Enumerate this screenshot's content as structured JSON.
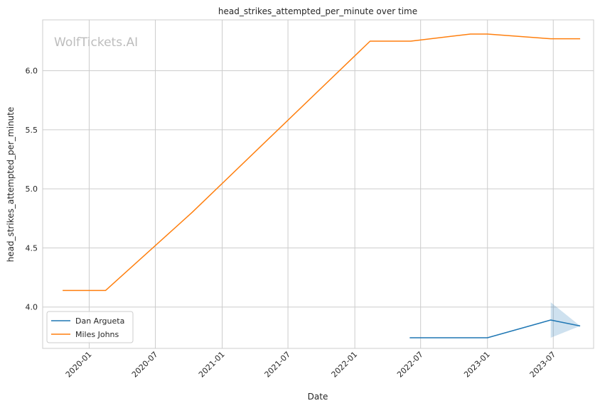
{
  "chart_data": {
    "type": "line",
    "title": "head_strikes_attempted_per_minute over time",
    "xlabel": "Date",
    "ylabel": "head_strikes_attempted_per_minute",
    "watermark": "WolfTickets.AI",
    "x_scale": "time",
    "xlim": [
      "2019-08-26",
      "2023-10-20"
    ],
    "ylim": [
      3.65,
      6.43
    ],
    "x_ticks": [
      {
        "date": "2020-01-01",
        "label": "2020-01"
      },
      {
        "date": "2020-07-01",
        "label": "2020-07"
      },
      {
        "date": "2021-01-01",
        "label": "2021-01"
      },
      {
        "date": "2021-07-01",
        "label": "2021-07"
      },
      {
        "date": "2022-01-01",
        "label": "2022-01"
      },
      {
        "date": "2022-07-01",
        "label": "2022-07"
      },
      {
        "date": "2023-01-01",
        "label": "2023-01"
      },
      {
        "date": "2023-07-01",
        "label": "2023-07"
      }
    ],
    "y_ticks": [
      {
        "value": 4.0,
        "label": "4.0"
      },
      {
        "value": 4.5,
        "label": "4.5"
      },
      {
        "value": 5.0,
        "label": "5.0"
      },
      {
        "value": 5.5,
        "label": "5.5"
      },
      {
        "value": 6.0,
        "label": "6.0"
      }
    ],
    "grid": true,
    "legend_position": "lower-left",
    "series": [
      {
        "name": "Dan Argueta",
        "color": "#1f77b4",
        "points": [
          {
            "x": "2022-06-01",
            "y": 3.74
          },
          {
            "x": "2023-01-01",
            "y": 3.74
          },
          {
            "x": "2023-06-24",
            "y": 3.89
          },
          {
            "x": "2023-09-13",
            "y": 3.84
          }
        ],
        "band": [
          {
            "x": "2023-06-24",
            "lower": 3.74,
            "upper": 4.04
          },
          {
            "x": "2023-09-13",
            "lower": 3.84,
            "upper": 3.84
          }
        ]
      },
      {
        "name": "Miles Johns",
        "color": "#ff7f0e",
        "points": [
          {
            "x": "2019-10-20",
            "y": 4.14
          },
          {
            "x": "2020-02-15",
            "y": 4.14
          },
          {
            "x": "2020-10-10",
            "y": 4.8
          },
          {
            "x": "2022-02-12",
            "y": 6.25
          },
          {
            "x": "2022-06-04",
            "y": 6.25
          },
          {
            "x": "2022-11-15",
            "y": 6.31
          },
          {
            "x": "2023-01-01",
            "y": 6.31
          },
          {
            "x": "2023-06-24",
            "y": 6.27
          },
          {
            "x": "2023-09-13",
            "y": 6.27
          }
        ]
      }
    ]
  }
}
